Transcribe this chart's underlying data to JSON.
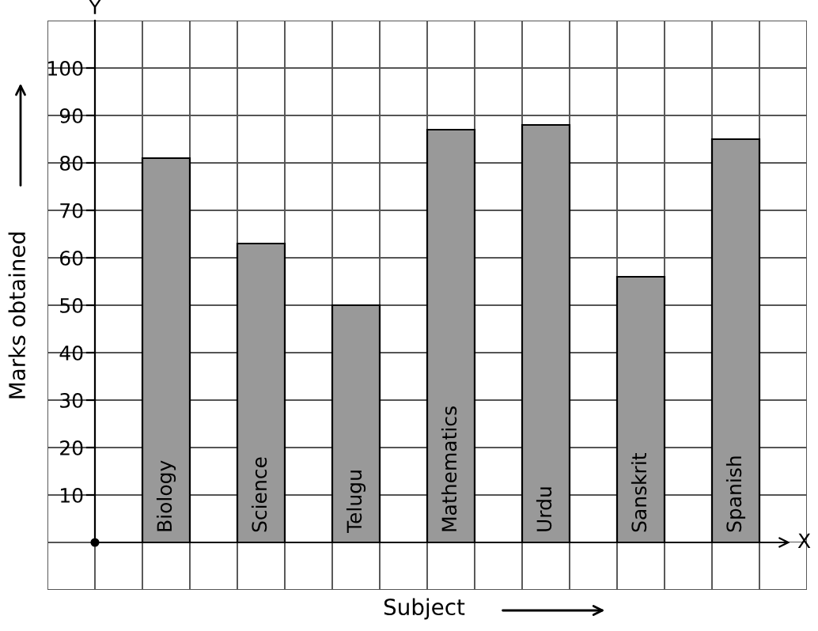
{
  "chart_data": {
    "type": "bar",
    "xlabel": "Subject",
    "ylabel": "Marks obtained",
    "categories": [
      "Biology",
      "Science",
      "Telugu",
      "Mathematics",
      "Urdu",
      "Sanskrit",
      "Spanish"
    ],
    "values": [
      81,
      63,
      50,
      87,
      88,
      56,
      85
    ],
    "color": "#999999",
    "ylim": [
      0,
      110
    ],
    "yticks": [
      10,
      20,
      30,
      40,
      50,
      60,
      70,
      80,
      90,
      100
    ],
    "grid": true,
    "annotations": [
      "Y",
      "X"
    ]
  }
}
